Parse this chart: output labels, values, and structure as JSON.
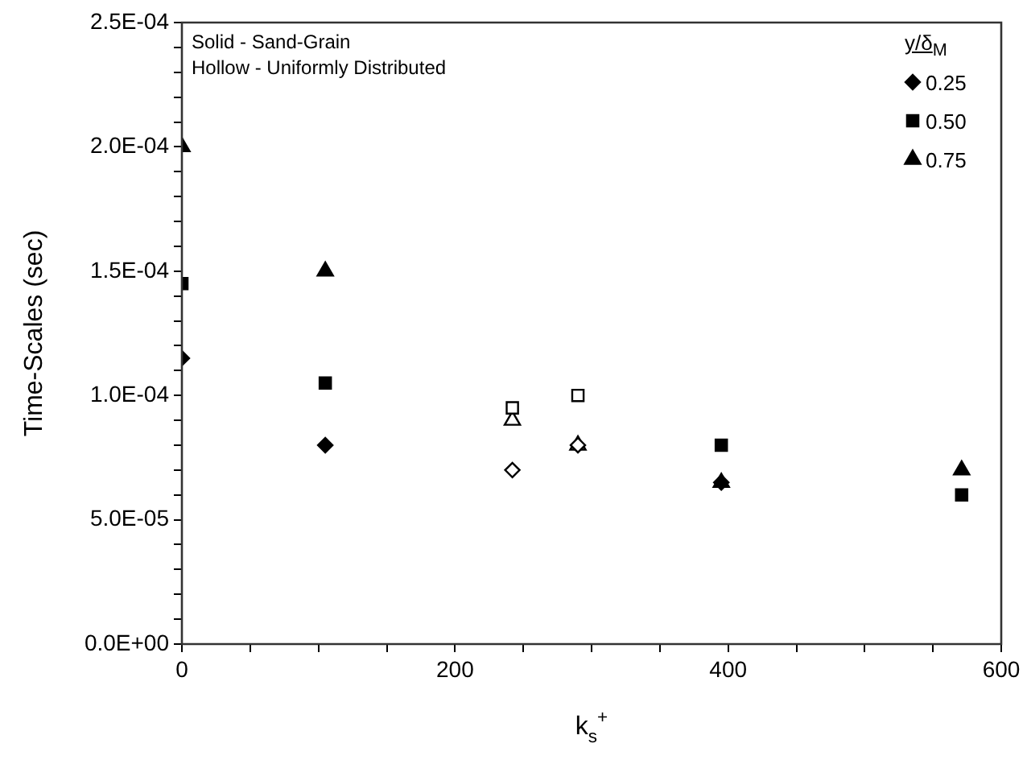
{
  "chart_data": {
    "type": "scatter",
    "xlabel": "k$_{s}$$^{+}$",
    "ylabel": "Time-Scales (sec)",
    "legend_title": "y/δ$_{M}$",
    "annotations": [
      "Solid - Sand-Grain",
      "Hollow - Uniformly Distributed"
    ],
    "xlim": [
      0,
      600
    ],
    "xticks": [
      0,
      {
        "value": 50,
        "label": null
      },
      {
        "value": 100,
        "label": null
      },
      {
        "value": 150,
        "label": null
      },
      200,
      {
        "value": 250,
        "label": null
      },
      {
        "value": 300,
        "label": null
      },
      {
        "value": 350,
        "label": null
      },
      400,
      {
        "value": 450,
        "label": null
      },
      {
        "value": 500,
        "label": null
      },
      {
        "value": 550,
        "label": null
      },
      600
    ],
    "ylim": [
      0,
      0.00025
    ],
    "yticks": [
      {
        "value": 0,
        "label": "0.0E+00"
      },
      {
        "value": 1e-05,
        "label": null
      },
      {
        "value": 2e-05,
        "label": null
      },
      {
        "value": 3e-05,
        "label": null
      },
      {
        "value": 4e-05,
        "label": null
      },
      {
        "value": 5e-05,
        "label": "5.0E-05"
      },
      {
        "value": 6e-05,
        "label": null
      },
      {
        "value": 7e-05,
        "label": null
      },
      {
        "value": 8e-05,
        "label": null
      },
      {
        "value": 9e-05,
        "label": null
      },
      {
        "value": 0.0001,
        "label": "1.0E-04"
      },
      {
        "value": 0.00011,
        "label": null
      },
      {
        "value": 0.00012,
        "label": null
      },
      {
        "value": 0.00013,
        "label": null
      },
      {
        "value": 0.00014,
        "label": null
      },
      {
        "value": 0.00015,
        "label": "1.5E-04"
      },
      {
        "value": 0.00016,
        "label": null
      },
      {
        "value": 0.00017,
        "label": null
      },
      {
        "value": 0.00018,
        "label": null
      },
      {
        "value": 0.00019,
        "label": null
      },
      {
        "value": 0.0002,
        "label": "2.0E-04"
      },
      {
        "value": 0.00021,
        "label": null
      },
      {
        "value": 0.00022,
        "label": null
      },
      {
        "value": 0.00023,
        "label": null
      },
      {
        "value": 0.00024,
        "label": null
      },
      {
        "value": 0.00025,
        "label": "2.5E-04"
      }
    ],
    "grid": false,
    "legend": "top right",
    "series": [
      {
        "name": "0.25",
        "color": "#000000",
        "marker": "diamond",
        "x": [
          0,
          105,
          395
        ],
        "values": [
          0.000115,
          8e-05,
          6.5e-05
        ]
      },
      {
        "name": "0.50",
        "color": "#000000",
        "marker": "square",
        "x": [
          0,
          105,
          395,
          571
        ],
        "values": [
          0.000145,
          0.000105,
          8e-05,
          6e-05
        ]
      },
      {
        "name": "0.75",
        "color": "#000000",
        "marker": "triangle",
        "x": [
          0,
          105,
          395,
          571
        ],
        "values": [
          0.0002,
          0.00015,
          6.5e-05,
          7e-05
        ]
      },
      {
        "color": "#ffffff",
        "marker": "diamond",
        "x": [
          242,
          290
        ],
        "values": [
          7e-05,
          8e-05
        ]
      },
      {
        "color": "#ffffff",
        "marker": "square",
        "x": [
          242,
          290
        ],
        "values": [
          9.5e-05,
          0.0001
        ]
      },
      {
        "color": "#ffffff",
        "marker": "triangle",
        "x": [
          242,
          290
        ],
        "values": [
          9e-05,
          8e-05
        ]
      }
    ]
  }
}
